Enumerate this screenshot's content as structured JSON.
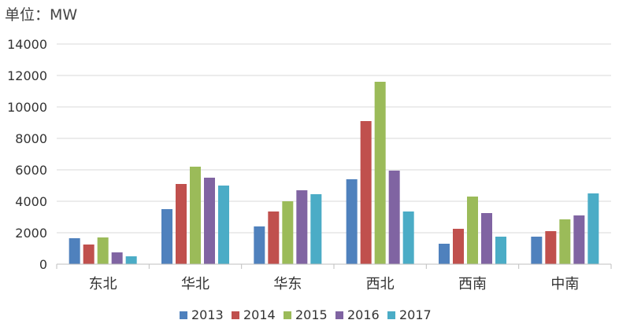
{
  "chart_data": {
    "type": "bar",
    "unit_label": "单位：MW",
    "categories": [
      "东北",
      "华北",
      "华东",
      "西北",
      "西南",
      "中南"
    ],
    "series": [
      {
        "name": "2013",
        "color": "#4f81bd",
        "values": [
          1650,
          3500,
          2400,
          5400,
          1300,
          1750
        ]
      },
      {
        "name": "2014",
        "color": "#c0504d",
        "values": [
          1250,
          5100,
          3350,
          9100,
          2250,
          2100
        ]
      },
      {
        "name": "2015",
        "color": "#9bbb59",
        "values": [
          1700,
          6200,
          4000,
          11600,
          4300,
          2850
        ]
      },
      {
        "name": "2016",
        "color": "#8064a2",
        "values": [
          750,
          5500,
          4700,
          5950,
          3250,
          3100
        ]
      },
      {
        "name": "2017",
        "color": "#4bacc6",
        "values": [
          500,
          5000,
          4450,
          3350,
          1750,
          4500
        ]
      }
    ],
    "ylim": [
      0,
      14000
    ],
    "yticks": [
      0,
      2000,
      4000,
      6000,
      8000,
      10000,
      12000,
      14000
    ],
    "grid": true,
    "legend_position": "bottom"
  }
}
